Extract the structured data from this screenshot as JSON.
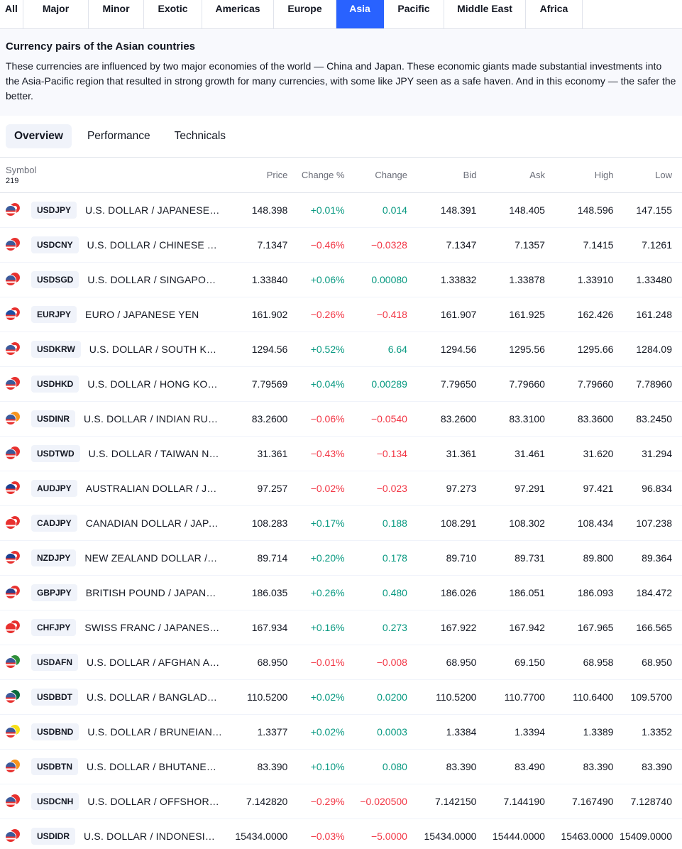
{
  "region_tabs": [
    {
      "label": "All",
      "width": 33
    },
    {
      "label": "Major",
      "width": 92
    },
    {
      "label": "Minor",
      "width": 78
    },
    {
      "label": "Exotic",
      "width": 82
    },
    {
      "label": "Americas",
      "width": 101
    },
    {
      "label": "Europe",
      "width": 88
    },
    {
      "label": "Asia",
      "width": 67,
      "active": true
    },
    {
      "label": "Pacific",
      "width": 85
    },
    {
      "label": "Middle East",
      "width": 115
    },
    {
      "label": "Africa",
      "width": 80
    }
  ],
  "info": {
    "title": "Currency pairs of the Asian countries",
    "text": "These currencies are influenced by two major economies of the world — China and Japan. These economic giants made substantial investments into the Asia-Pacific region that resulted in strong growth for many currencies, with some like JPY seen as a safe haven. And in this economy — the safer the better."
  },
  "view_tabs": [
    {
      "label": "Overview",
      "active": true
    },
    {
      "label": "Performance"
    },
    {
      "label": "Technicals"
    }
  ],
  "table": {
    "symbol_header": "Symbol",
    "symbol_count": "219",
    "headers": [
      "Price",
      "Change %",
      "Change",
      "Bid",
      "Ask",
      "High",
      "Low"
    ],
    "rows": [
      {
        "ticker": "USDJPY",
        "desc": "U.S. DOLLAR / JAPANESE YEN",
        "price": "148.398",
        "chp": "+0.01%",
        "ch": "0.014",
        "bid": "148.391",
        "ask": "148.405",
        "high": "148.596",
        "low": "147.155",
        "dir": "pos",
        "flag": [
          "#3c5a9a",
          "#ffffff"
        ]
      },
      {
        "ticker": "USDCNY",
        "desc": "U.S. DOLLAR / CHINESE YUAN",
        "price": "7.1347",
        "chp": "−0.46%",
        "ch": "−0.0328",
        "bid": "7.1347",
        "ask": "7.1357",
        "high": "7.1415",
        "low": "7.1261",
        "dir": "neg",
        "flag": [
          "#3c5a9a",
          "#e8312f"
        ]
      },
      {
        "ticker": "USDSGD",
        "desc": "U.S. DOLLAR / SINGAPORE D…",
        "price": "1.33840",
        "chp": "+0.06%",
        "ch": "0.00080",
        "bid": "1.33832",
        "ask": "1.33878",
        "high": "1.33910",
        "low": "1.33480",
        "dir": "pos",
        "flag": [
          "#3c5a9a",
          "#e8312f"
        ]
      },
      {
        "ticker": "EURJPY",
        "desc": "EURO / JAPANESE YEN",
        "price": "161.902",
        "chp": "−0.26%",
        "ch": "−0.418",
        "bid": "161.907",
        "ask": "161.925",
        "high": "162.426",
        "low": "161.248",
        "dir": "neg",
        "flag": [
          "#1f4ea3",
          "#ffffff"
        ]
      },
      {
        "ticker": "USDKRW",
        "desc": "U.S. DOLLAR / SOUTH KORE…",
        "price": "1294.56",
        "chp": "+0.52%",
        "ch": "6.64",
        "bid": "1294.56",
        "ask": "1295.56",
        "high": "1295.66",
        "low": "1284.09",
        "dir": "pos",
        "flag": [
          "#3c5a9a",
          "#ffffff"
        ]
      },
      {
        "ticker": "USDHKD",
        "desc": "U.S. DOLLAR / HONG KONG …",
        "price": "7.79569",
        "chp": "+0.04%",
        "ch": "0.00289",
        "bid": "7.79650",
        "ask": "7.79660",
        "high": "7.79660",
        "low": "7.78960",
        "dir": "pos",
        "flag": [
          "#3c5a9a",
          "#e8312f"
        ]
      },
      {
        "ticker": "USDINR",
        "desc": "U.S. DOLLAR / INDIAN RUPEE",
        "price": "83.2600",
        "chp": "−0.06%",
        "ch": "−0.0540",
        "bid": "83.2600",
        "ask": "83.3100",
        "high": "83.3600",
        "low": "83.2450",
        "dir": "neg",
        "flag": [
          "#3c5a9a",
          "#f7941d"
        ]
      },
      {
        "ticker": "USDTWD",
        "desc": "U.S. DOLLAR / TAIWAN NEW…",
        "price": "31.361",
        "chp": "−0.43%",
        "ch": "−0.134",
        "bid": "31.361",
        "ask": "31.461",
        "high": "31.620",
        "low": "31.294",
        "dir": "neg",
        "flag": [
          "#3c5a9a",
          "#e8312f"
        ]
      },
      {
        "ticker": "AUDJPY",
        "desc": "AUSTRALIAN DOLLAR / JAPA…",
        "price": "97.257",
        "chp": "−0.02%",
        "ch": "−0.023",
        "bid": "97.273",
        "ask": "97.291",
        "high": "97.421",
        "low": "96.834",
        "dir": "neg",
        "flag": [
          "#1c3f8f",
          "#ffffff"
        ]
      },
      {
        "ticker": "CADJPY",
        "desc": "CANADIAN DOLLAR / JAPANE…",
        "price": "108.283",
        "chp": "+0.17%",
        "ch": "0.188",
        "bid": "108.291",
        "ask": "108.302",
        "high": "108.434",
        "low": "107.238",
        "dir": "pos",
        "flag": [
          "#e8312f",
          "#ffffff"
        ]
      },
      {
        "ticker": "NZDJPY",
        "desc": "NEW ZEALAND DOLLAR / JA…",
        "price": "89.714",
        "chp": "+0.20%",
        "ch": "0.178",
        "bid": "89.710",
        "ask": "89.731",
        "high": "89.800",
        "low": "89.364",
        "dir": "pos",
        "flag": [
          "#1c3f8f",
          "#ffffff"
        ]
      },
      {
        "ticker": "GBPJPY",
        "desc": "BRITISH POUND / JAPANESE …",
        "price": "186.035",
        "chp": "+0.26%",
        "ch": "0.480",
        "bid": "186.026",
        "ask": "186.051",
        "high": "186.093",
        "low": "184.472",
        "dir": "pos",
        "flag": [
          "#2b3f8a",
          "#ffffff"
        ]
      },
      {
        "ticker": "CHFJPY",
        "desc": "SWISS FRANC / JAPANESE YEN",
        "price": "167.934",
        "chp": "+0.16%",
        "ch": "0.273",
        "bid": "167.922",
        "ask": "167.942",
        "high": "167.965",
        "low": "166.565",
        "dir": "pos",
        "flag": [
          "#e8312f",
          "#ffffff"
        ]
      },
      {
        "ticker": "USDAFN",
        "desc": "U.S. DOLLAR / AFGHAN AFG…",
        "price": "68.950",
        "chp": "−0.01%",
        "ch": "−0.008",
        "bid": "68.950",
        "ask": "69.150",
        "high": "68.958",
        "low": "68.950",
        "dir": "neg",
        "flag": [
          "#3c5a9a",
          "#2f8f3a"
        ]
      },
      {
        "ticker": "USDBDT",
        "desc": "U.S. DOLLAR / BANGLADESH…",
        "price": "110.5200",
        "chp": "+0.02%",
        "ch": "0.0200",
        "bid": "110.5200",
        "ask": "110.7700",
        "high": "110.6400",
        "low": "109.5700",
        "dir": "pos",
        "flag": [
          "#3c5a9a",
          "#0a6a3c"
        ]
      },
      {
        "ticker": "USDBND",
        "desc": "U.S. DOLLAR / BRUNEIAN D…",
        "price": "1.3377",
        "chp": "+0.02%",
        "ch": "0.0003",
        "bid": "1.3384",
        "ask": "1.3394",
        "high": "1.3389",
        "low": "1.3352",
        "dir": "pos",
        "flag": [
          "#3c5a9a",
          "#f7e017"
        ]
      },
      {
        "ticker": "USDBTN",
        "desc": "U.S. DOLLAR / BHUTANESE …",
        "price": "83.390",
        "chp": "+0.10%",
        "ch": "0.080",
        "bid": "83.390",
        "ask": "83.490",
        "high": "83.390",
        "low": "83.390",
        "dir": "pos",
        "flag": [
          "#3c5a9a",
          "#f7941d"
        ]
      },
      {
        "ticker": "USDCNH",
        "desc": "U.S. DOLLAR / OFFSHORE C…",
        "price": "7.142820",
        "chp": "−0.29%",
        "ch": "−0.020500",
        "bid": "7.142150",
        "ask": "7.144190",
        "high": "7.167490",
        "low": "7.128740",
        "dir": "neg",
        "flag": [
          "#3c5a9a",
          "#e8312f"
        ]
      },
      {
        "ticker": "USDIDR",
        "desc": "U.S. DOLLAR / INDONESIAN …",
        "price": "15434.0000",
        "chp": "−0.03%",
        "ch": "−5.0000",
        "bid": "15434.0000",
        "ask": "15444.0000",
        "high": "15463.0000",
        "low": "15409.0000",
        "dir": "neg",
        "flag": [
          "#3c5a9a",
          "#e8312f"
        ]
      }
    ]
  },
  "colors": {
    "accent": "#2962ff",
    "positive": "#089981",
    "negative": "#f23645"
  }
}
